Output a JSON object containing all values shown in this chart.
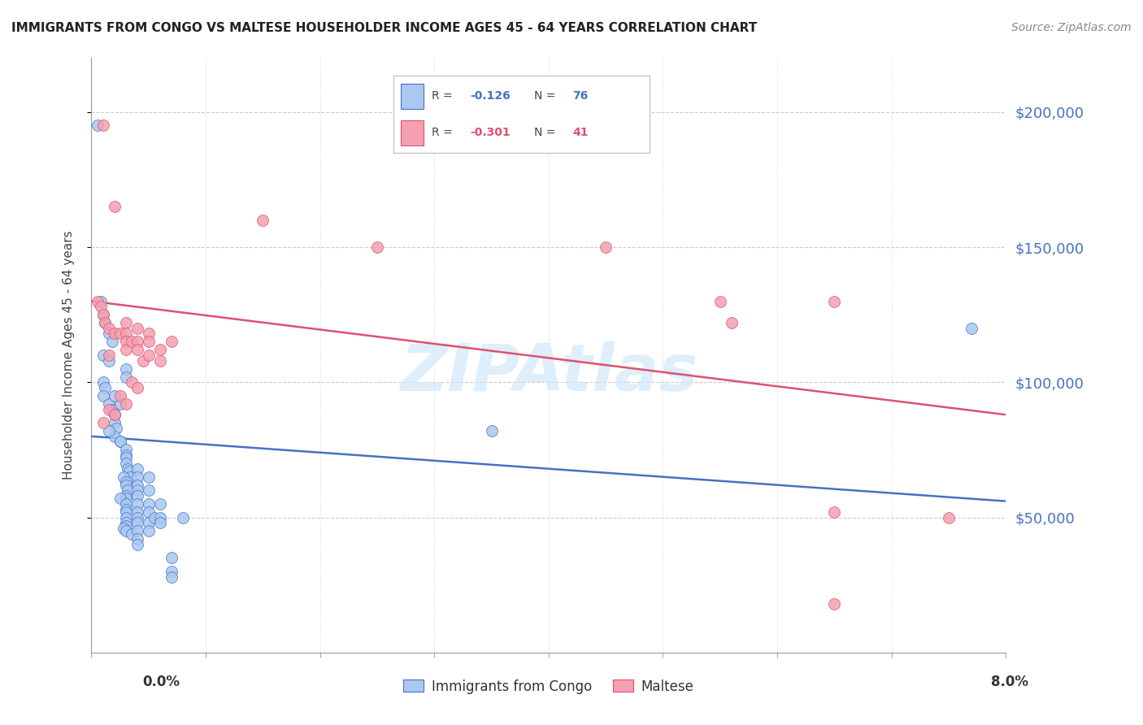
{
  "title": "IMMIGRANTS FROM CONGO VS MALTESE HOUSEHOLDER INCOME AGES 45 - 64 YEARS CORRELATION CHART",
  "source": "Source: ZipAtlas.com",
  "ylabel": "Householder Income Ages 45 - 64 years",
  "xlim": [
    0.0,
    0.08
  ],
  "ylim": [
    0,
    220000
  ],
  "yticks": [
    50000,
    100000,
    150000,
    200000
  ],
  "ytick_labels": [
    "$50,000",
    "$100,000",
    "$150,000",
    "$200,000"
  ],
  "xticks": [
    0.0,
    0.01,
    0.02,
    0.03,
    0.04,
    0.05,
    0.06,
    0.07,
    0.08
  ],
  "legend_entry1_R": "-0.126",
  "legend_entry1_N": "76",
  "legend_entry2_R": "-0.301",
  "legend_entry2_N": "41",
  "blue_line_x": [
    0.0,
    0.08
  ],
  "blue_line_y": [
    80000,
    56000
  ],
  "pink_line_x": [
    0.0,
    0.08
  ],
  "pink_line_y": [
    130000,
    88000
  ],
  "congo_color": "#aac8f0",
  "maltese_color": "#f4a0b0",
  "congo_edge_color": "#4472c4",
  "maltese_edge_color": "#e05070",
  "background_color": "#ffffff",
  "watermark_text": "ZIPAtlas",
  "watermark_color": "#d0e8f8",
  "title_fontsize": 11,
  "source_fontsize": 10,
  "ylabel_fontsize": 11,
  "legend_label1": "Immigrants from Congo",
  "legend_label2": "Maltese",
  "congo_points": [
    [
      0.0005,
      195000
    ],
    [
      0.0008,
      130000
    ],
    [
      0.001,
      125000
    ],
    [
      0.0012,
      122000
    ],
    [
      0.0015,
      118000
    ],
    [
      0.0018,
      115000
    ],
    [
      0.001,
      110000
    ],
    [
      0.0015,
      108000
    ],
    [
      0.001,
      100000
    ],
    [
      0.0012,
      98000
    ],
    [
      0.001,
      95000
    ],
    [
      0.0015,
      92000
    ],
    [
      0.0018,
      90000
    ],
    [
      0.002,
      88000
    ],
    [
      0.002,
      85000
    ],
    [
      0.0022,
      83000
    ],
    [
      0.002,
      80000
    ],
    [
      0.0025,
      78000
    ],
    [
      0.003,
      105000
    ],
    [
      0.003,
      102000
    ],
    [
      0.0025,
      78000
    ],
    [
      0.003,
      75000
    ],
    [
      0.003,
      73000
    ],
    [
      0.003,
      72000
    ],
    [
      0.003,
      70000
    ],
    [
      0.0032,
      68000
    ],
    [
      0.0033,
      67000
    ],
    [
      0.0034,
      65000
    ],
    [
      0.0028,
      65000
    ],
    [
      0.003,
      63000
    ],
    [
      0.003,
      62000
    ],
    [
      0.0032,
      60000
    ],
    [
      0.003,
      58000
    ],
    [
      0.003,
      57000
    ],
    [
      0.0025,
      57000
    ],
    [
      0.003,
      55000
    ],
    [
      0.003,
      53000
    ],
    [
      0.003,
      52000
    ],
    [
      0.003,
      50000
    ],
    [
      0.003,
      48000
    ],
    [
      0.003,
      47000
    ],
    [
      0.0028,
      46000
    ],
    [
      0.003,
      45000
    ],
    [
      0.0035,
      44000
    ],
    [
      0.004,
      68000
    ],
    [
      0.004,
      65000
    ],
    [
      0.004,
      62000
    ],
    [
      0.004,
      60000
    ],
    [
      0.004,
      58000
    ],
    [
      0.004,
      55000
    ],
    [
      0.004,
      52000
    ],
    [
      0.004,
      50000
    ],
    [
      0.004,
      48000
    ],
    [
      0.004,
      45000
    ],
    [
      0.004,
      42000
    ],
    [
      0.004,
      40000
    ],
    [
      0.005,
      65000
    ],
    [
      0.005,
      60000
    ],
    [
      0.005,
      55000
    ],
    [
      0.005,
      52000
    ],
    [
      0.005,
      48000
    ],
    [
      0.005,
      45000
    ],
    [
      0.0055,
      50000
    ],
    [
      0.006,
      55000
    ],
    [
      0.006,
      50000
    ],
    [
      0.006,
      48000
    ],
    [
      0.007,
      35000
    ],
    [
      0.007,
      30000
    ],
    [
      0.007,
      28000
    ],
    [
      0.008,
      50000
    ],
    [
      0.035,
      82000
    ],
    [
      0.077,
      120000
    ],
    [
      0.002,
      88000
    ],
    [
      0.0015,
      82000
    ],
    [
      0.002,
      95000
    ],
    [
      0.0025,
      92000
    ]
  ],
  "maltese_points": [
    [
      0.001,
      195000
    ],
    [
      0.002,
      165000
    ],
    [
      0.015,
      160000
    ],
    [
      0.025,
      150000
    ],
    [
      0.0005,
      130000
    ],
    [
      0.0008,
      128000
    ],
    [
      0.001,
      125000
    ],
    [
      0.0012,
      122000
    ],
    [
      0.0015,
      120000
    ],
    [
      0.002,
      118000
    ],
    [
      0.0025,
      118000
    ],
    [
      0.003,
      122000
    ],
    [
      0.003,
      118000
    ],
    [
      0.003,
      115000
    ],
    [
      0.003,
      112000
    ],
    [
      0.0035,
      115000
    ],
    [
      0.004,
      120000
    ],
    [
      0.004,
      115000
    ],
    [
      0.004,
      112000
    ],
    [
      0.0045,
      108000
    ],
    [
      0.005,
      118000
    ],
    [
      0.005,
      115000
    ],
    [
      0.005,
      110000
    ],
    [
      0.006,
      112000
    ],
    [
      0.006,
      108000
    ],
    [
      0.007,
      115000
    ],
    [
      0.0035,
      100000
    ],
    [
      0.004,
      98000
    ],
    [
      0.0025,
      95000
    ],
    [
      0.003,
      92000
    ],
    [
      0.0015,
      90000
    ],
    [
      0.002,
      88000
    ],
    [
      0.001,
      85000
    ],
    [
      0.045,
      150000
    ],
    [
      0.055,
      130000
    ],
    [
      0.056,
      122000
    ],
    [
      0.065,
      130000
    ],
    [
      0.065,
      52000
    ],
    [
      0.065,
      18000
    ],
    [
      0.075,
      50000
    ],
    [
      0.0015,
      110000
    ]
  ]
}
